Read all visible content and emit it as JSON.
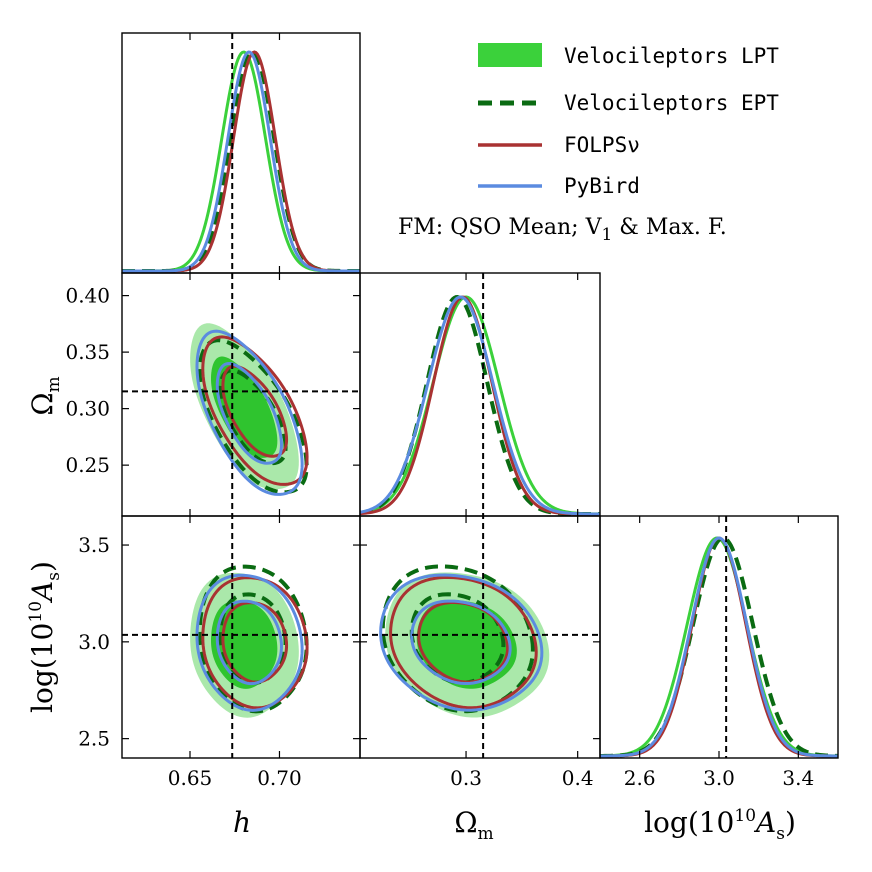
{
  "chart_data": {
    "type": "corner",
    "parameters": [
      {
        "id": "h",
        "ticks": [
          0.65,
          0.7
        ],
        "tick_labels": [
          "0.65",
          "0.70"
        ],
        "range": [
          0.612,
          0.745
        ],
        "truth": 0.6736
      },
      {
        "id": "om",
        "ticks": [
          0.25,
          0.3,
          0.35,
          0.4
        ],
        "tick_labels": [
          "0.25",
          "0.30",
          "0.35",
          "0.40"
        ],
        "range": [
          0.205,
          0.42
        ],
        "truth": 0.3153,
        "x_ticks": [
          0.3,
          0.4
        ],
        "x_tick_labels": [
          "0.3",
          "0.4"
        ]
      },
      {
        "id": "as",
        "ticks": [
          2.5,
          3.0,
          3.5
        ],
        "tick_labels": [
          "2.5",
          "3.0",
          "3.5"
        ],
        "range": [
          2.4,
          3.65
        ],
        "truth": 3.036,
        "x_ticks": [
          2.6,
          3.0,
          3.4
        ],
        "x_tick_labels": [
          "2.6",
          "3.0",
          "3.4"
        ],
        "x_range": [
          2.4,
          3.6
        ]
      }
    ],
    "axis_labels": {
      "h": "h",
      "om": "Ω",
      "om_sub": "m",
      "as": "log(10",
      "as_sup": "10",
      "as_A": "A",
      "as_sub": "s",
      "as_close": ")"
    },
    "series": [
      {
        "name": "Velocileptors LPT",
        "style": "filled",
        "color": "#3bd13b",
        "color_inner": "#2fc42f",
        "color_outer": "#8ee08e",
        "mean": {
          "h": 0.68,
          "om": 0.3,
          "as": 2.99
        },
        "sigma": {
          "h": 0.0122,
          "om": 0.0295,
          "as": 0.15
        },
        "rho": {
          "h_om": -0.62,
          "h_as": -0.1,
          "om_as": -0.15
        }
      },
      {
        "name": "Velocileptors EPT",
        "style": "dashed",
        "color": "#0a6b12",
        "mean": {
          "h": 0.685,
          "om": 0.292,
          "as": 3.02
        },
        "sigma": {
          "h": 0.012,
          "om": 0.027,
          "as": 0.15
        },
        "rho": {
          "h_om": -0.62,
          "h_as": -0.1,
          "om_as": -0.15
        }
      },
      {
        "name": "FOLPSν",
        "style": "solid",
        "color": "#a93232",
        "mean": {
          "h": 0.686,
          "om": 0.297,
          "as": 3.0
        },
        "sigma": {
          "h": 0.0117,
          "om": 0.0262,
          "as": 0.135
        },
        "rho": {
          "h_om": -0.6,
          "h_as": -0.08,
          "om_as": -0.15
        }
      },
      {
        "name": "PyBird",
        "style": "solid",
        "color": "#5b8be0",
        "mean": {
          "h": 0.683,
          "om": 0.295,
          "as": 3.0
        },
        "sigma": {
          "h": 0.0118,
          "om": 0.029,
          "as": 0.14
        },
        "rho": {
          "h_om": -0.6,
          "h_as": -0.1,
          "om_as": -0.15
        }
      }
    ],
    "legend_placement": "top-right",
    "annotation": "FM: QSO Mean; V",
    "annotation_sub": "1",
    "annotation_tail": " & Max. F."
  }
}
